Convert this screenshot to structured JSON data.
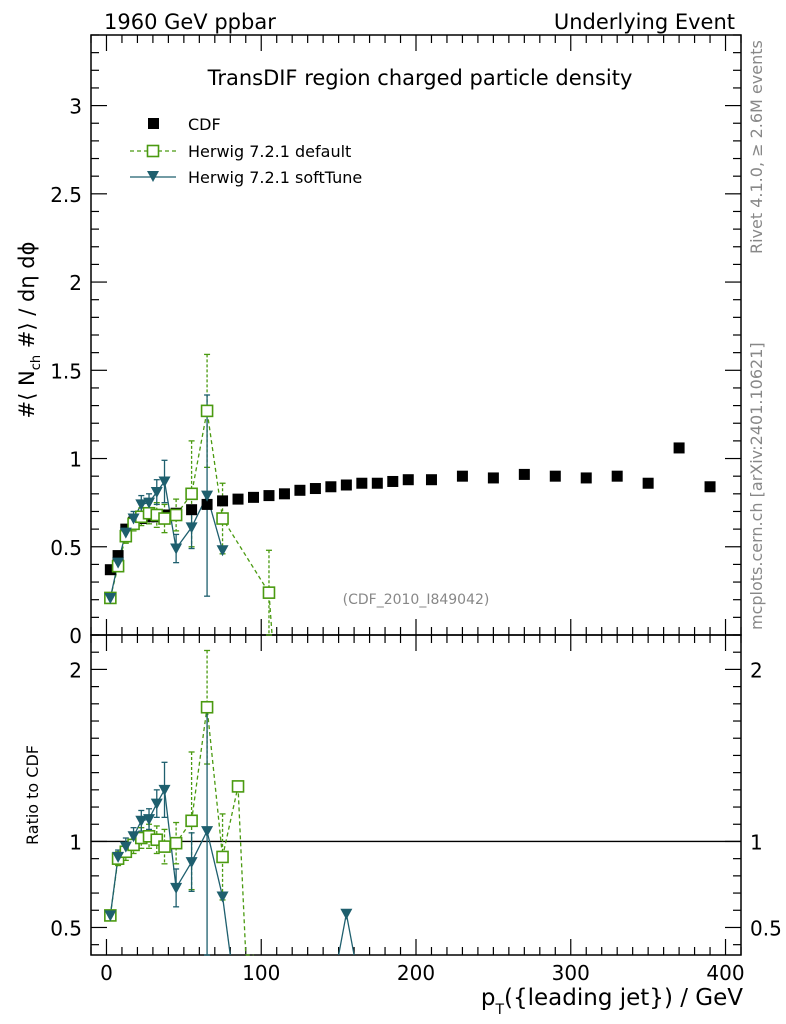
{
  "header": {
    "left": "1960 GeV ppbar",
    "right": "Underlying Event"
  },
  "side_labels": {
    "rivet": "Rivet 4.1.0, ≥ 2.6M events",
    "mcplots": "mcplots.cern.ch [arXiv:2401.10621]"
  },
  "colors": {
    "cdf": "#000000",
    "default": "#4a9a10",
    "softtune": "#1e5f6e",
    "grey": "#888888"
  },
  "chart_data": {
    "type": "scatter",
    "title": "TransDIF region charged particle density",
    "watermark": "(CDF_2010_I849042)",
    "xlabel_main": "p",
    "xlabel_sub": "T",
    "xlabel_rest": "({leading jet}) / GeV",
    "ylabel": "#⟨ N_ch #⟩ / dη dϕ",
    "ylabel_parts": {
      "a": "#⟨ N",
      "sub": "ch",
      "b": " #⟩ / dη dϕ"
    },
    "ratio_ylabel": "Ratio to CDF",
    "xlim": [
      -10,
      410
    ],
    "ylim": [
      0,
      3.4
    ],
    "ratio_ylim": [
      0.34,
      2.2
    ],
    "x_ticks": [
      0,
      100,
      200,
      300,
      400
    ],
    "x_tick_labels": [
      "0",
      "100",
      "200",
      "300",
      "400"
    ],
    "y_ticks": [
      0,
      0.5,
      1,
      1.5,
      2,
      2.5,
      3
    ],
    "y_tick_labels": [
      "0",
      "0.5",
      "1",
      "1.5",
      "2",
      "2.5",
      "3"
    ],
    "ratio_ticks": [
      0.5,
      1,
      2
    ],
    "ratio_tick_labels": [
      "0.5",
      "1",
      "2"
    ],
    "legend": [
      "CDF",
      "Herwig 7.2.1 default",
      "Herwig 7.2.1 softTune"
    ],
    "series": [
      {
        "name": "CDF",
        "x": [
          2.5,
          7.5,
          12.5,
          17.5,
          22.5,
          27.5,
          32.5,
          37.5,
          45,
          55,
          65,
          75,
          85,
          95,
          105,
          115,
          125,
          135,
          145,
          155,
          165,
          175,
          185,
          195,
          210,
          230,
          250,
          270,
          290,
          310,
          330,
          350,
          370,
          390
        ],
        "y": [
          0.37,
          0.45,
          0.6,
          0.64,
          0.66,
          0.67,
          0.67,
          0.68,
          0.69,
          0.71,
          0.74,
          0.76,
          0.77,
          0.78,
          0.79,
          0.8,
          0.82,
          0.83,
          0.84,
          0.85,
          0.86,
          0.86,
          0.87,
          0.88,
          0.88,
          0.9,
          0.89,
          0.91,
          0.9,
          0.89,
          0.9,
          0.86,
          1.06,
          0.84
        ]
      },
      {
        "name": "Herwig 7.2.1 default",
        "x": [
          2.5,
          7.5,
          12.5,
          17.5,
          22.5,
          27.5,
          32.5,
          37.5,
          45,
          55,
          65,
          75,
          105
        ],
        "y": [
          0.21,
          0.39,
          0.56,
          0.63,
          0.67,
          0.69,
          0.68,
          0.66,
          0.68,
          0.8,
          1.27,
          0.66,
          0.24
        ],
        "err": [
          0.02,
          0.03,
          0.04,
          0.04,
          0.05,
          0.06,
          0.07,
          0.08,
          0.09,
          0.3,
          0.32,
          0.2,
          0.24
        ]
      },
      {
        "name": "Herwig 7.2.1 softTune",
        "x": [
          2.5,
          7.5,
          12.5,
          17.5,
          22.5,
          27.5,
          32.5,
          37.5,
          45,
          55,
          65,
          75
        ],
        "y": [
          0.21,
          0.41,
          0.58,
          0.66,
          0.74,
          0.75,
          0.81,
          0.87,
          0.49,
          0.61,
          0.79,
          0.48
        ],
        "err": [
          0.02,
          0.03,
          0.04,
          0.04,
          0.05,
          0.05,
          0.07,
          0.12,
          0.08,
          0.12,
          0.57,
          0.0
        ]
      }
    ],
    "ratio": {
      "reference": 1,
      "series": [
        {
          "name": "Herwig 7.2.1 default",
          "x": [
            2.5,
            7.5,
            12.5,
            17.5,
            22.5,
            27.5,
            32.5,
            37.5,
            45,
            55,
            65,
            75,
            85
          ],
          "y": [
            0.57,
            0.9,
            0.94,
            0.98,
            1.02,
            1.03,
            1.01,
            0.97,
            0.99,
            1.12,
            1.78,
            0.91,
            1.32
          ],
          "err": [
            0.03,
            0.04,
            0.05,
            0.05,
            0.06,
            0.07,
            0.08,
            0.1,
            0.12,
            0.4,
            0.33,
            0.25,
            0.0
          ],
          "segments": [
            {
              "from": [
                75,
                0.91
              ],
              "to": [
                85,
                1.32
              ]
            },
            {
              "from": [
                85,
                1.32
              ],
              "to": [
                90,
                0.34
              ]
            },
            {
              "from": [
                90,
                0.34
              ],
              "to": [
                95,
                0.34
              ]
            }
          ]
        },
        {
          "name": "Herwig 7.2.1 softTune",
          "x": [
            2.5,
            7.5,
            12.5,
            17.5,
            22.5,
            27.5,
            32.5,
            37.5,
            45,
            55,
            65,
            75,
            155
          ],
          "y": [
            0.57,
            0.91,
            0.97,
            1.03,
            1.12,
            1.13,
            1.22,
            1.3,
            0.73,
            0.88,
            1.06,
            0.68,
            0.58
          ],
          "err": [
            0.03,
            0.04,
            0.05,
            0.05,
            0.06,
            0.06,
            0.08,
            0.16,
            0.11,
            0.17,
            0.75,
            0.0,
            0.0
          ],
          "segments": [
            {
              "from": [
                75,
                0.68
              ],
              "to": [
                80,
                0.34
              ]
            },
            {
              "from": [
                150,
                0.34
              ],
              "to": [
                155,
                0.58
              ]
            },
            {
              "from": [
                155,
                0.58
              ],
              "to": [
                160,
                0.34
              ]
            }
          ]
        }
      ]
    }
  }
}
